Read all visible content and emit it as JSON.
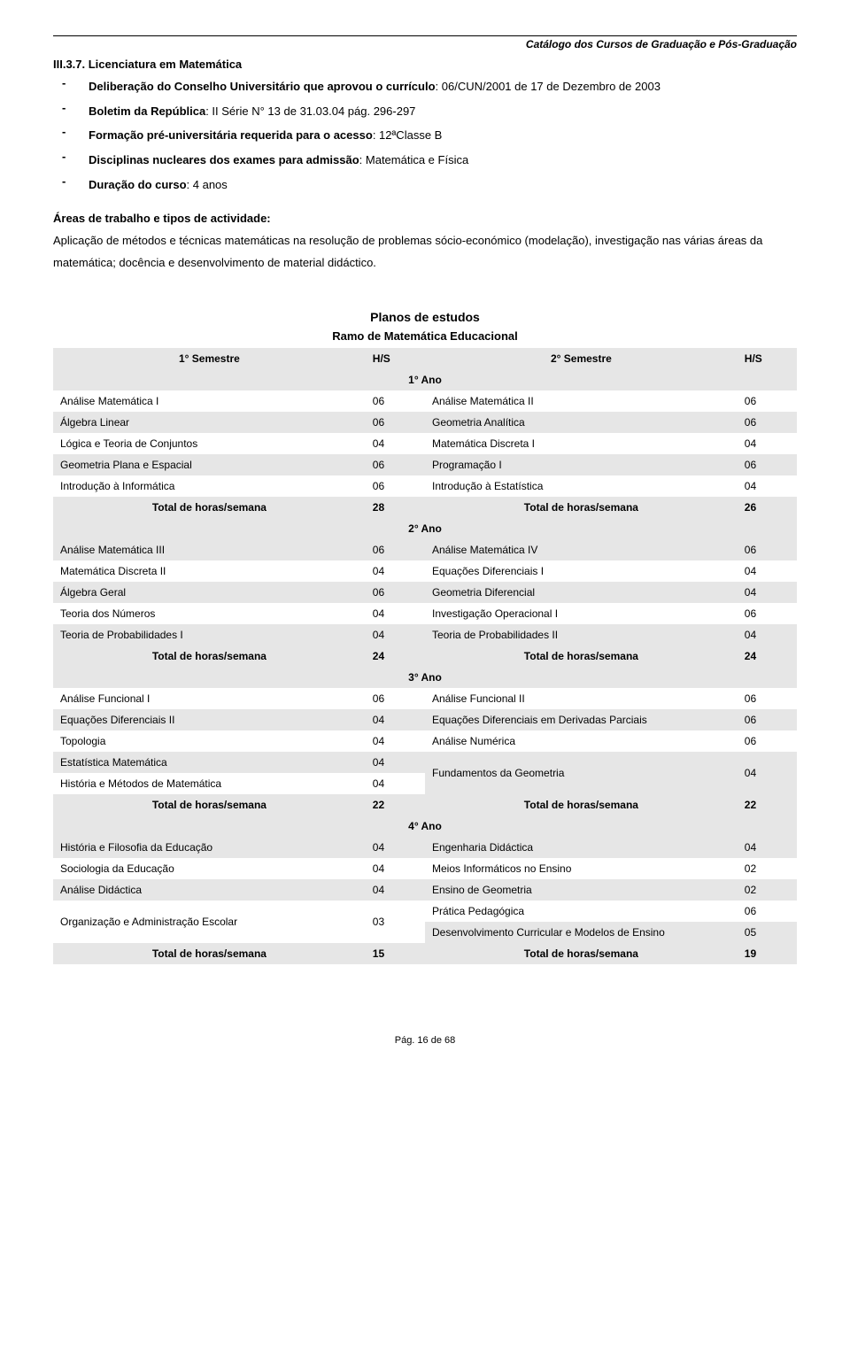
{
  "header": {
    "top_right": "Catálogo dos Cursos de Graduação e Pós-Graduação",
    "section": "III.3.7. Licenciatura em Matemática"
  },
  "bullets": [
    {
      "label": "Deliberação do Conselho Universitário que aprovou o currículo",
      "value": ": 06/CUN/2001 de 17 de Dezembro de 2003"
    },
    {
      "label": "Boletim da República",
      "value": ": II Série N° 13 de 31.03.04 pág. 296-297"
    },
    {
      "label": "Formação pré-universitária requerida para o acesso",
      "value": ": 12ªClasse B"
    },
    {
      "label": "Disciplinas nucleares dos exames para admissão",
      "value": ": Matemática e Física"
    },
    {
      "label": "Duração do curso",
      "value": ": 4 anos"
    }
  ],
  "areas": {
    "title": "Áreas de trabalho e tipos de actividade:",
    "body": "Aplicação de métodos e técnicas matemáticas na resolução de problemas sócio-económico (modelação), investigação nas várias áreas da matemática; docência e desenvolvimento de material didáctico."
  },
  "plan": {
    "title": "Planos de estudos",
    "subtitle": "Ramo de Matemática Educacional",
    "col_headers": {
      "sem1": "1° Semestre",
      "hs": "H/S",
      "sem2": "2° Semestre",
      "hs2": "H/S"
    },
    "years": [
      {
        "label": "1° Ano",
        "rows": [
          {
            "l": "Análise Matemática I",
            "lh": "06",
            "r": "Análise Matemática II",
            "rh": "06",
            "shade": false
          },
          {
            "l": "Álgebra Linear",
            "lh": "06",
            "r": "Geometria Analítica",
            "rh": "06",
            "shade": true
          },
          {
            "l": "Lógica e Teoria de Conjuntos",
            "lh": "04",
            "r": "Matemática Discreta I",
            "rh": "04",
            "shade": false
          },
          {
            "l": "Geometria Plana e Espacial",
            "lh": "06",
            "r": "Programação I",
            "rh": "06",
            "shade": true
          },
          {
            "l": "Introdução à Informática",
            "lh": "06",
            "r": "Introdução à Estatística",
            "rh": "04",
            "shade": false
          }
        ],
        "total": {
          "l": "Total de horas/semana",
          "lh": "28",
          "r": "Total de horas/semana",
          "rh": "26"
        }
      },
      {
        "label": "2° Ano",
        "rows": [
          {
            "l": "Análise Matemática III",
            "lh": "06",
            "r": "Análise Matemática IV",
            "rh": "06",
            "shade": true
          },
          {
            "l": "Matemática Discreta II",
            "lh": "04",
            "r": "Equações Diferenciais I",
            "rh": "04",
            "shade": false
          },
          {
            "l": "Álgebra Geral",
            "lh": "06",
            "r": "Geometria Diferencial",
            "rh": "04",
            "shade": true
          },
          {
            "l": "Teoria dos Números",
            "lh": "04",
            "r": "Investigação Operacional I",
            "rh": "06",
            "shade": false
          },
          {
            "l": "Teoria de Probabilidades I",
            "lh": "04",
            "r": "Teoria de Probabilidades II",
            "rh": "04",
            "shade": true
          }
        ],
        "total": {
          "l": "Total de horas/semana",
          "lh": "24",
          "r": "Total de horas/semana",
          "rh": "24"
        }
      },
      {
        "label": "3° Ano",
        "rows": [
          {
            "l": "Análise Funcional I",
            "lh": "06",
            "r": "Análise Funcional II",
            "rh": "06",
            "shade": false
          },
          {
            "l": "Equações Diferenciais II",
            "lh": "04",
            "r": "Equações Diferenciais em Derivadas Parciais",
            "rh": "06",
            "shade": true
          },
          {
            "l": "Topologia",
            "lh": "04",
            "r": "Análise Numérica",
            "rh": "06",
            "shade": false
          }
        ],
        "merged": {
          "left": [
            {
              "l": "Estatística Matemática",
              "lh": "04",
              "shade": true
            },
            {
              "l": "História e Métodos de Matemática",
              "lh": "04",
              "shade": false
            }
          ],
          "right": {
            "r": "Fundamentos da Geometria",
            "rh": "04"
          }
        },
        "total": {
          "l": "Total de horas/semana",
          "lh": "22",
          "r": "Total de horas/semana",
          "rh": "22"
        }
      },
      {
        "label": "4° Ano",
        "rows": [
          {
            "l": "História e Filosofia da Educação",
            "lh": "04",
            "r": "Engenharia Didáctica",
            "rh": "04",
            "shade": true
          },
          {
            "l": "Sociologia da Educação",
            "lh": "04",
            "r": "Meios Informáticos no Ensino",
            "rh": "02",
            "shade": false
          },
          {
            "l": "Análise Didáctica",
            "lh": "04",
            "r": "Ensino de Geometria",
            "rh": "02",
            "shade": true
          }
        ],
        "merged2": {
          "left": {
            "l": "Organização e Administração Escolar",
            "lh": "03"
          },
          "right": [
            {
              "r": "Prática Pedagógica",
              "rh": "06",
              "shade": false
            },
            {
              "r": "Desenvolvimento Curricular e Modelos de Ensino",
              "rh": "05",
              "shade": true
            }
          ]
        },
        "total": {
          "l": "Total de horas/semana",
          "lh": "15",
          "r": "Total de horas/semana",
          "rh": "19"
        }
      }
    ]
  },
  "footer": "Pág. 16 de 68",
  "style": {
    "shade_color": "#e6e6e6",
    "text_color": "#000000",
    "bg_color": "#ffffff",
    "font_family": "Arial",
    "body_font_size": 13,
    "table_font_size": 12
  }
}
